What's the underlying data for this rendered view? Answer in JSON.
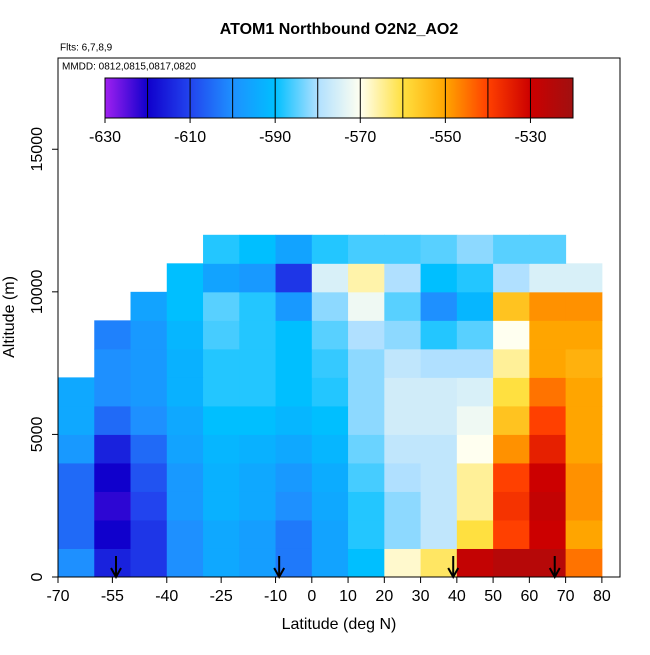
{
  "chart_data": {
    "type": "heatmap",
    "title": "ATOM1 Northbound O2N2_AO2",
    "annotations": [
      "Flts: 6,7,8,9",
      "MMDD: 0812,0815,0817,0820"
    ],
    "x_label": "Latitude (deg N)",
    "y_label": "Altitude (m)",
    "xlim": [
      -70,
      85
    ],
    "ylim": [
      0,
      18200
    ],
    "xticks": [
      -70,
      -55,
      -40,
      -25,
      -10,
      0,
      10,
      20,
      30,
      40,
      50,
      60,
      70,
      80
    ],
    "yticks": [
      0,
      5000,
      10000,
      15000
    ],
    "x_edges": [
      -70,
      -60,
      -50,
      -40,
      -30,
      -20,
      -10,
      0,
      10,
      20,
      30,
      40,
      50,
      60,
      70,
      80
    ],
    "y_edges": [
      0,
      1000,
      2000,
      3000,
      4000,
      5000,
      6000,
      7000,
      8000,
      9000,
      10000,
      11000,
      12000
    ],
    "z": [
      [
        -600,
        -615,
        -612,
        -600,
        -595,
        -597,
        -603,
        -596,
        -590,
        -568,
        -562,
        -528,
        -525,
        -525,
        -545
      ],
      [
        -605,
        -620,
        -612,
        -600,
        -595,
        -597,
        -603,
        -596,
        -588,
        -582,
        -578,
        -560,
        -540,
        -530,
        -550
      ],
      [
        -605,
        -622,
        -610,
        -598,
        -593,
        -595,
        -600,
        -595,
        -588,
        -582,
        -578,
        -565,
        -538,
        -528,
        -548
      ],
      [
        -605,
        -620,
        -608,
        -598,
        -593,
        -595,
        -598,
        -594,
        -586,
        -580,
        -578,
        -565,
        -540,
        -530,
        -548
      ],
      [
        -598,
        -615,
        -605,
        -596,
        -592,
        -593,
        -595,
        -592,
        -584,
        -578,
        -578,
        -570,
        -548,
        -535,
        -550
      ],
      [
        -595,
        -605,
        -600,
        -595,
        -590,
        -590,
        -592,
        -590,
        -582,
        -576,
        -576,
        -572,
        -555,
        -540,
        -550
      ],
      [
        -595,
        -600,
        -598,
        -593,
        -588,
        -588,
        -590,
        -588,
        -582,
        -576,
        -576,
        -575,
        -560,
        -545,
        -550
      ],
      [
        null,
        -600,
        -598,
        -593,
        -588,
        -588,
        -590,
        -587,
        -582,
        -578,
        -580,
        -580,
        -565,
        -550,
        -552
      ],
      [
        null,
        -602,
        -598,
        -592,
        -586,
        -588,
        -590,
        -585,
        -580,
        -582,
        -588,
        -585,
        -570,
        -550,
        -550
      ],
      [
        null,
        null,
        -596,
        -590,
        -585,
        -588,
        -598,
        -582,
        -572,
        -585,
        -600,
        -592,
        -555,
        -548,
        -548
      ],
      [
        null,
        null,
        null,
        -590,
        -596,
        -598,
        -612,
        -575,
        -566,
        -580,
        -590,
        -588,
        -580,
        -575,
        -575
      ],
      [
        null,
        null,
        null,
        null,
        -588,
        -590,
        -596,
        -588,
        -586,
        -586,
        -585,
        -582,
        -585,
        -585,
        null
      ]
    ],
    "zlim": [
      -630,
      -520
    ],
    "zticks": [
      -630,
      -610,
      -590,
      -570,
      -550,
      -530
    ],
    "colorscale": [
      "#a020f0",
      "#1000cc",
      "#2244ee",
      "#1e90ff",
      "#00bfff",
      "#b0e0ff",
      "#fffff0",
      "#ffe040",
      "#ffa500",
      "#ff4000",
      "#cc0000",
      "#a01010"
    ],
    "arrows_x": [
      -54,
      -9,
      39,
      67
    ]
  }
}
